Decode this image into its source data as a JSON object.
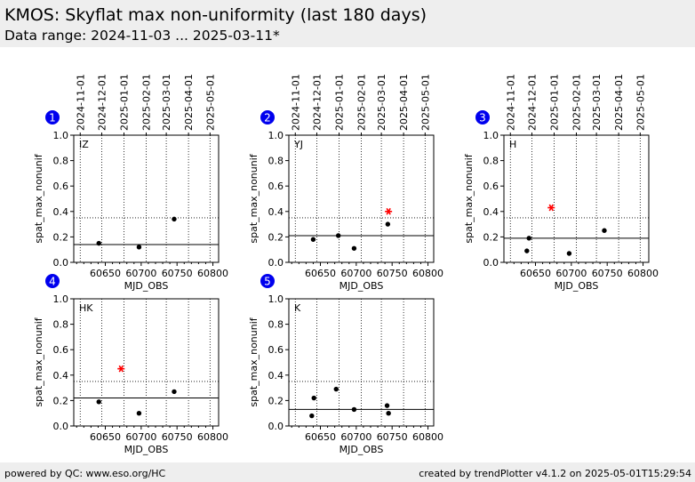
{
  "header": {
    "title": "KMOS: Skyflat max non-uniformity (last 180 days)",
    "subtitle": "Data range: 2024-11-03 ... 2025-03-11*"
  },
  "footer": {
    "left": "powered by QC: www.eso.org/HC",
    "right": "created by trendPlotter v4.1.2 on 2025-05-01T15:29:54"
  },
  "chart_data": [
    {
      "type": "scatter",
      "panel_number": "1",
      "band": "IZ",
      "xlabel": "MJD_OBS",
      "ylabel": "spat_max_nonunif",
      "xlim": [
        60606,
        60808
      ],
      "ylim": [
        0,
        1.0
      ],
      "x_ticks": [
        "60650",
        "60700",
        "60750",
        "60800"
      ],
      "y_ticks": [
        "0.0",
        "0.2",
        "0.4",
        "0.6",
        "0.8",
        "1.0"
      ],
      "top_ticks": [
        "2024-11-01",
        "2024-12-01",
        "2025-01-01",
        "2025-02-01",
        "2025-03-01",
        "2025-04-01",
        "2025-05-01"
      ],
      "reference_level": 0.14,
      "threshold": 0.35,
      "points": [
        {
          "x": 60641,
          "y": 0.15
        },
        {
          "x": 60697,
          "y": 0.12
        },
        {
          "x": 60746,
          "y": 0.34
        }
      ],
      "outliers": []
    },
    {
      "type": "scatter",
      "panel_number": "2",
      "band": "YJ",
      "xlabel": "MJD_OBS",
      "ylabel": "spat_max_nonunif",
      "xlim": [
        60606,
        60808
      ],
      "ylim": [
        0,
        1.0
      ],
      "x_ticks": [
        "60650",
        "60700",
        "60750",
        "60800"
      ],
      "y_ticks": [
        "0.0",
        "0.2",
        "0.4",
        "0.6",
        "0.8",
        "1.0"
      ],
      "top_ticks": [
        "2024-11-01",
        "2024-12-01",
        "2025-01-01",
        "2025-02-01",
        "2025-03-01",
        "2025-04-01",
        "2025-05-01"
      ],
      "reference_level": 0.21,
      "threshold": 0.35,
      "points": [
        {
          "x": 60640,
          "y": 0.18
        },
        {
          "x": 60675,
          "y": 0.21
        },
        {
          "x": 60697,
          "y": 0.11
        },
        {
          "x": 60744,
          "y": 0.3
        }
      ],
      "outliers": [
        {
          "x": 60745,
          "y": 0.4
        }
      ]
    },
    {
      "type": "scatter",
      "panel_number": "3",
      "band": "H",
      "xlabel": "MJD_OBS",
      "ylabel": "spat_max_nonunif",
      "xlim": [
        60606,
        60808
      ],
      "ylim": [
        0,
        1.0
      ],
      "x_ticks": [
        "60650",
        "60700",
        "60750",
        "60800"
      ],
      "y_ticks": [
        "0.0",
        "0.2",
        "0.4",
        "0.6",
        "0.8",
        "1.0"
      ],
      "top_ticks": [
        "2024-11-01",
        "2024-12-01",
        "2025-01-01",
        "2025-02-01",
        "2025-03-01",
        "2025-04-01",
        "2025-05-01"
      ],
      "reference_level": 0.19,
      "threshold": 0.35,
      "points": [
        {
          "x": 60638,
          "y": 0.09
        },
        {
          "x": 60641,
          "y": 0.19
        },
        {
          "x": 60697,
          "y": 0.07
        },
        {
          "x": 60746,
          "y": 0.25
        }
      ],
      "outliers": [
        {
          "x": 60672,
          "y": 0.43
        }
      ]
    },
    {
      "type": "scatter",
      "panel_number": "4",
      "band": "HK",
      "xlabel": "MJD_OBS",
      "ylabel": "spat_max_nonunif",
      "xlim": [
        60606,
        60808
      ],
      "ylim": [
        0,
        1.0
      ],
      "x_ticks": [
        "60650",
        "60700",
        "60750",
        "60800"
      ],
      "y_ticks": [
        "0.0",
        "0.2",
        "0.4",
        "0.6",
        "0.8",
        "1.0"
      ],
      "top_ticks": [],
      "reference_level": 0.22,
      "threshold": 0.35,
      "points": [
        {
          "x": 60641,
          "y": 0.19
        },
        {
          "x": 60697,
          "y": 0.1
        },
        {
          "x": 60746,
          "y": 0.27
        }
      ],
      "outliers": [
        {
          "x": 60672,
          "y": 0.45
        }
      ]
    },
    {
      "type": "scatter",
      "panel_number": "5",
      "band": "K",
      "xlabel": "MJD_OBS",
      "ylabel": "spat_max_nonunif",
      "xlim": [
        60606,
        60808
      ],
      "ylim": [
        0,
        1.0
      ],
      "x_ticks": [
        "60650",
        "60700",
        "60750",
        "60800"
      ],
      "y_ticks": [
        "0.0",
        "0.2",
        "0.4",
        "0.6",
        "0.8",
        "1.0"
      ],
      "top_ticks": [],
      "reference_level": 0.13,
      "threshold": 0.35,
      "points": [
        {
          "x": 60638,
          "y": 0.08
        },
        {
          "x": 60641,
          "y": 0.22
        },
        {
          "x": 60672,
          "y": 0.29
        },
        {
          "x": 60697,
          "y": 0.13
        },
        {
          "x": 60743,
          "y": 0.16
        },
        {
          "x": 60745,
          "y": 0.1
        }
      ],
      "outliers": []
    }
  ]
}
